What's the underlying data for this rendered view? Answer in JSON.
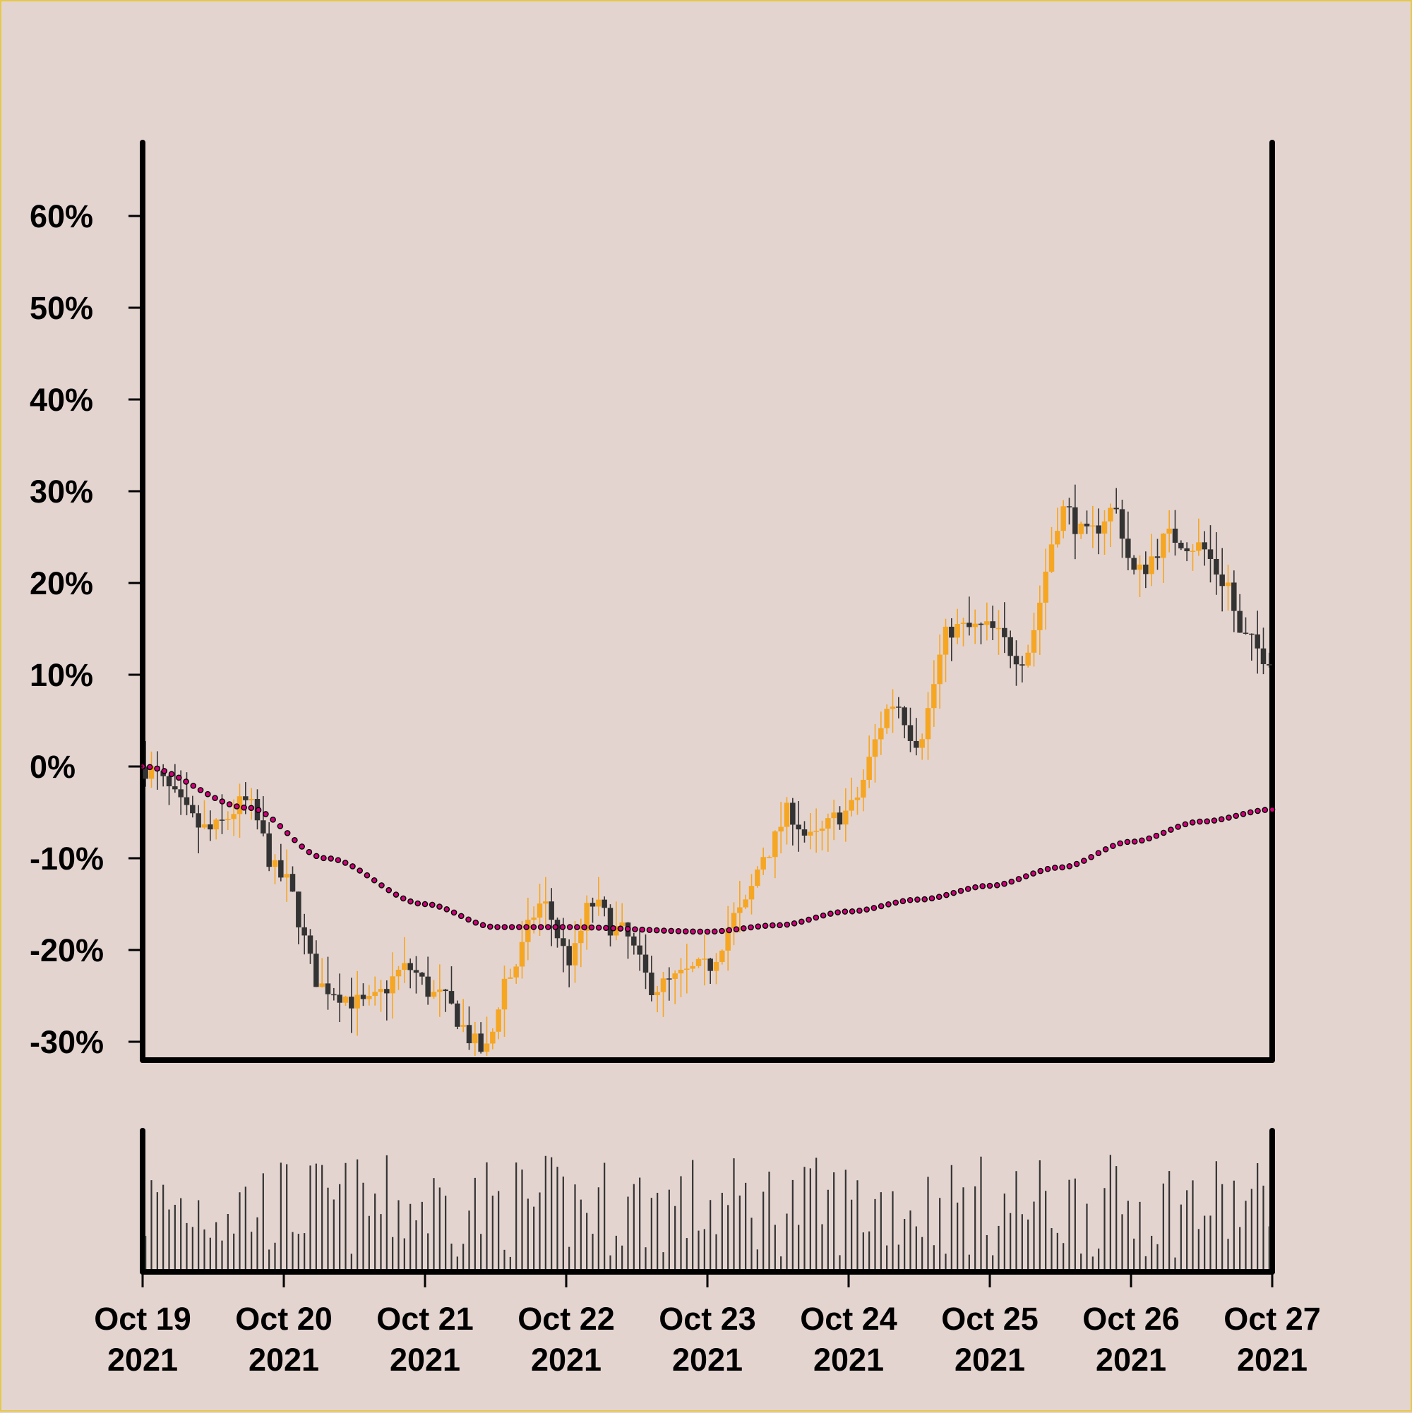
{
  "chart_data": {
    "type": "candlestick",
    "title": "",
    "xlabel": "",
    "ylabel": "",
    "y_unit": "%",
    "ylim": [
      -32,
      68
    ],
    "y_ticks": [
      60,
      50,
      40,
      30,
      20,
      10,
      0,
      -10,
      -20,
      -30
    ],
    "y_tick_labels": [
      "60%",
      "50%",
      "40%",
      "30%",
      "20%",
      "10%",
      "0%",
      "-10%",
      "-20%",
      "-30%"
    ],
    "x_ticks": [
      {
        "line1": "Oct 19",
        "line2": "2021",
        "date": "2021-10-19"
      },
      {
        "line1": "Oct 20",
        "line2": "2021",
        "date": "2021-10-20"
      },
      {
        "line1": "Oct 21",
        "line2": "2021",
        "date": "2021-10-21"
      },
      {
        "line1": "Oct 22",
        "line2": "2021",
        "date": "2021-10-22"
      },
      {
        "line1": "Oct 23",
        "line2": "2021",
        "date": "2021-10-23"
      },
      {
        "line1": "Oct 24",
        "line2": "2021",
        "date": "2021-10-24"
      },
      {
        "line1": "Oct 25",
        "line2": "2021",
        "date": "2021-10-25"
      },
      {
        "line1": "Oct 26",
        "line2": "2021",
        "date": "2021-10-26"
      },
      {
        "line1": "Oct 27",
        "line2": "2021",
        "date": "2021-10-27"
      }
    ],
    "xlim": [
      "2021-10-19",
      "2021-10-27"
    ],
    "price_anchors": [
      {
        "date": "2021-10-19",
        "close_pct": 0
      },
      {
        "date": "2021-10-19.5",
        "close_pct": -7
      },
      {
        "date": "2021-10-19.75",
        "close_pct": -4
      },
      {
        "date": "2021-10-20",
        "close_pct": -12
      },
      {
        "date": "2021-10-20.3",
        "close_pct": -24
      },
      {
        "date": "2021-10-20.6",
        "close_pct": -26
      },
      {
        "date": "2021-10-20.9",
        "close_pct": -22
      },
      {
        "date": "2021-10-21.1",
        "close_pct": -25
      },
      {
        "date": "2021-10-21.45",
        "close_pct": -31
      },
      {
        "date": "2021-10-21.6",
        "close_pct": -23
      },
      {
        "date": "2021-10-21.85",
        "close_pct": -15
      },
      {
        "date": "2021-10-22.05",
        "close_pct": -21
      },
      {
        "date": "2021-10-22.2",
        "close_pct": -15
      },
      {
        "date": "2021-10-22.4",
        "close_pct": -18
      },
      {
        "date": "2021-10-22.65",
        "close_pct": -24
      },
      {
        "date": "2021-10-23",
        "close_pct": -22
      },
      {
        "date": "2021-10-23.25",
        "close_pct": -16
      },
      {
        "date": "2021-10-23.45",
        "close_pct": -9
      },
      {
        "date": "2021-10-23.6",
        "close_pct": -5
      },
      {
        "date": "2021-10-23.75",
        "close_pct": -8
      },
      {
        "date": "2021-10-24",
        "close_pct": -5
      },
      {
        "date": "2021-10-24.35",
        "close_pct": 7
      },
      {
        "date": "2021-10-24.5",
        "close_pct": 3
      },
      {
        "date": "2021-10-24.75",
        "close_pct": 15
      },
      {
        "date": "2021-10-25",
        "close_pct": 15
      },
      {
        "date": "2021-10-25.25",
        "close_pct": 12
      },
      {
        "date": "2021-10-25.55",
        "close_pct": 28
      },
      {
        "date": "2021-10-25.7",
        "close_pct": 25
      },
      {
        "date": "2021-10-25.9",
        "close_pct": 28
      },
      {
        "date": "2021-10-26.05",
        "close_pct": 21
      },
      {
        "date": "2021-10-26.3",
        "close_pct": 25
      },
      {
        "date": "2021-10-26.5",
        "close_pct": 24
      },
      {
        "date": "2021-10-26.7",
        "close_pct": 20
      },
      {
        "date": "2021-10-26.8",
        "close_pct": 14
      },
      {
        "date": "2021-10-27",
        "close_pct": 12
      }
    ],
    "moving_average": {
      "name": "",
      "color": "#cc0077",
      "points": [
        {
          "date": "2021-10-19",
          "value": 0
        },
        {
          "date": "2021-10-19.75",
          "value": -4.5
        },
        {
          "date": "2021-10-20.3",
          "value": -10
        },
        {
          "date": "2021-10-21",
          "value": -15
        },
        {
          "date": "2021-10-21.5",
          "value": -17.5
        },
        {
          "date": "2021-10-22",
          "value": -17.5
        },
        {
          "date": "2021-10-23",
          "value": -18
        },
        {
          "date": "2021-10-23.5",
          "value": -17.3
        },
        {
          "date": "2021-10-24",
          "value": -15.8
        },
        {
          "date": "2021-10-24.5",
          "value": -14.5
        },
        {
          "date": "2021-10-25",
          "value": -13
        },
        {
          "date": "2021-10-25.5",
          "value": -11
        },
        {
          "date": "2021-10-26",
          "value": -8.2
        },
        {
          "date": "2021-10-26.5",
          "value": -6
        },
        {
          "date": "2021-10-27",
          "value": -4.7
        }
      ]
    },
    "candle_colors": {
      "up": "#f5a623",
      "down": "#333333",
      "wick_up": "#f5a623",
      "wick_down": "#333333"
    },
    "volume": {
      "color": "#333333",
      "panel": "bottom"
    },
    "grid": false,
    "legend": "none"
  }
}
